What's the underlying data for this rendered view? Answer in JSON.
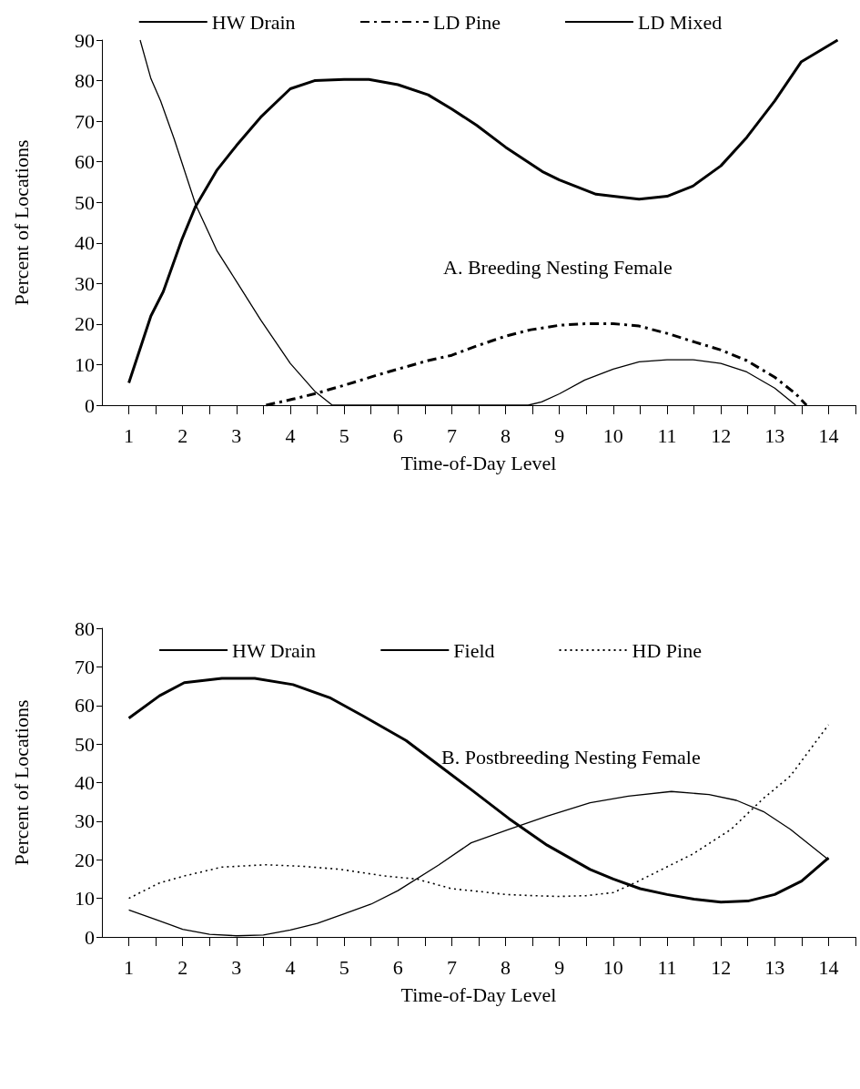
{
  "chart_data": [
    {
      "type": "line",
      "xlabel": "Time-of-Day Level",
      "ylabel": "Percent of Locations",
      "annotations": [
        "A. Breeding Nesting Female"
      ],
      "legend": "top",
      "grid": false,
      "marker": "none",
      "xlim": [
        0.5,
        14.5
      ],
      "xticks": [
        1,
        2,
        3,
        4,
        5,
        6,
        7,
        8,
        9,
        10,
        11,
        12,
        13,
        14,
        {
          "value": 1.5,
          "label": null
        },
        {
          "value": 2.5,
          "label": null
        },
        {
          "value": 3.5,
          "label": null
        },
        {
          "value": 4.5,
          "label": null
        },
        {
          "value": 5.5,
          "label": null
        },
        {
          "value": 6.5,
          "label": null
        },
        {
          "value": 7.5,
          "label": null
        },
        {
          "value": 8.5,
          "label": null
        },
        {
          "value": 9.5,
          "label": null
        },
        {
          "value": 10.5,
          "label": null
        },
        {
          "value": 11.5,
          "label": null
        },
        {
          "value": 12.5,
          "label": null
        },
        {
          "value": 13.5,
          "label": null
        },
        {
          "value": 14.5,
          "label": null
        }
      ],
      "ylim": [
        0,
        90
      ],
      "yticks": [
        0,
        10,
        20,
        30,
        40,
        50,
        60,
        70,
        80,
        90
      ],
      "series": [
        {
          "name": "HW Drain",
          "color": "#000000",
          "line_style": "solid",
          "x": [
            1,
            1.41,
            1.64,
            1.99,
            2.24,
            2.64,
            3,
            3.45,
            4,
            4.45,
            5,
            5.46,
            6,
            6.56,
            7,
            7.46,
            8,
            8.68,
            9,
            9.68,
            10,
            10.48,
            11,
            11.48,
            12,
            12.48,
            13,
            13.49,
            14.17
          ],
          "values": [
            5.5,
            22,
            28,
            41,
            49,
            58,
            64,
            71,
            78,
            80,
            80.3,
            80.3,
            79,
            76.5,
            73,
            69,
            63.6,
            57.6,
            55.5,
            52,
            51.5,
            50.8,
            51.5,
            54,
            59,
            66,
            75,
            84.6,
            90
          ]
        },
        {
          "name": "LD Pine",
          "color": "#000000",
          "line_style": "dashed",
          "x": [
            3.55,
            4.05,
            4.45,
            5,
            5.66,
            6,
            6.56,
            7,
            7.46,
            8,
            8.47,
            9,
            9.48,
            10,
            10.48,
            11,
            11.48,
            12,
            12.48,
            13,
            13.39,
            13.59
          ],
          "values": [
            0,
            1.5,
            2.8,
            4.9,
            7.6,
            8.9,
            11,
            12.3,
            14.6,
            17,
            18.6,
            19.7,
            20.1,
            20.1,
            19.5,
            17.7,
            15.7,
            13.6,
            11,
            6.9,
            2.8,
            0
          ]
        },
        {
          "name": "LD Mixed",
          "color": "#000000",
          "line_style": "solid",
          "x": [
            1.21,
            1.41,
            1.59,
            1.84,
            2.24,
            2.64,
            3,
            3.45,
            4,
            4.45,
            4.78,
            8.42,
            8.67,
            9,
            9.47,
            10,
            10.48,
            11,
            11.48,
            12,
            12.48,
            13,
            13.39
          ],
          "values": [
            90,
            80.5,
            75,
            65.7,
            49.5,
            38,
            30.5,
            21,
            10.3,
            3.5,
            0,
            0,
            0.8,
            2.8,
            6.2,
            8.9,
            10.7,
            11.2,
            11.2,
            10.3,
            8.2,
            4.2,
            0
          ]
        }
      ]
    },
    {
      "type": "line",
      "xlabel": "Time-of-Day Level",
      "ylabel": "Percent of Locations",
      "annotations": [
        "B. Postbreeding Nesting Female"
      ],
      "legend": "top",
      "grid": false,
      "marker": "none",
      "xlim": [
        0.5,
        14.5
      ],
      "xticks": [
        1,
        2,
        3,
        4,
        5,
        6,
        7,
        8,
        9,
        10,
        11,
        12,
        13,
        14,
        {
          "value": 1.5,
          "label": null
        },
        {
          "value": 2.5,
          "label": null
        },
        {
          "value": 3.5,
          "label": null
        },
        {
          "value": 4.5,
          "label": null
        },
        {
          "value": 5.5,
          "label": null
        },
        {
          "value": 6.5,
          "label": null
        },
        {
          "value": 7.5,
          "label": null
        },
        {
          "value": 8.5,
          "label": null
        },
        {
          "value": 9.5,
          "label": null
        },
        {
          "value": 10.5,
          "label": null
        },
        {
          "value": 11.5,
          "label": null
        },
        {
          "value": 12.5,
          "label": null
        },
        {
          "value": 13.5,
          "label": null
        },
        {
          "value": 14.5,
          "label": null
        }
      ],
      "ylim": [
        0,
        80
      ],
      "yticks": [
        0,
        10,
        20,
        30,
        40,
        50,
        60,
        70,
        80
      ],
      "series": [
        {
          "name": "HW Drain",
          "color": "#000000",
          "line_style": "solid",
          "x": [
            1,
            1.57,
            2.03,
            2.73,
            3.34,
            4.05,
            4.75,
            5.35,
            6.15,
            6.75,
            7.36,
            8.06,
            8.77,
            9.57,
            10,
            10.5,
            11,
            11.5,
            12,
            12.5,
            13,
            13.5,
            14
          ],
          "values": [
            56.7,
            62.5,
            65.9,
            67,
            67,
            65.4,
            61.9,
            57.3,
            50.9,
            44.6,
            38.2,
            30.7,
            23.8,
            17.5,
            15,
            12.5,
            11,
            9.8,
            9,
            9.3,
            11,
            14.5,
            20.5
          ]
        },
        {
          "name": "Field",
          "color": "#000000",
          "line_style": "solid",
          "x": [
            1,
            1.5,
            2,
            2.5,
            3,
            3.5,
            4,
            4.5,
            5,
            5.5,
            6,
            6.75,
            7.36,
            8.06,
            8.77,
            9.57,
            10.28,
            11.08,
            11.78,
            12.29,
            12.79,
            13.29,
            14
          ],
          "values": [
            7,
            4.5,
            2,
            0.7,
            0.3,
            0.5,
            1.8,
            3.5,
            6,
            8.5,
            12,
            18.6,
            24.4,
            27.9,
            31.3,
            34.8,
            36.5,
            37.7,
            36.9,
            35.4,
            32.5,
            27.9,
            20
          ]
        },
        {
          "name": "HD Pine",
          "color": "#000000",
          "line_style": "dotted",
          "x": [
            1,
            1.57,
            2.03,
            2.73,
            3.54,
            4.24,
            4.94,
            5.75,
            6.35,
            7,
            7.5,
            8,
            8.5,
            9,
            9.5,
            10,
            10.4,
            11.48,
            12.19,
            12.79,
            13.29,
            14
          ],
          "values": [
            10,
            14,
            15.8,
            18.1,
            18.7,
            18.3,
            17.5,
            15.8,
            15,
            12.5,
            11.8,
            11,
            10.7,
            10.5,
            10.7,
            11.5,
            14,
            21.5,
            27.9,
            35.9,
            41.7,
            55
          ]
        }
      ]
    }
  ]
}
